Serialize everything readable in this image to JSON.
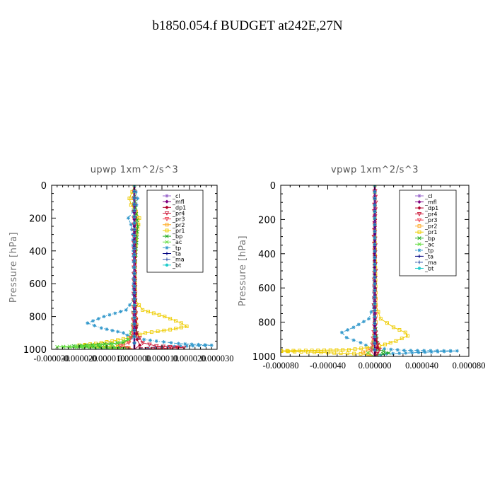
{
  "figure_title": "b1850.054.f  BUDGET at242E,27N",
  "legend_entries": [
    "_cl",
    "_mfl",
    "_dp1",
    "_pr4",
    "_pr3",
    "_pr2",
    "_pr1",
    "_bp",
    "_ac",
    "_tp",
    "_ta",
    "_ma",
    "_bt"
  ],
  "colors": {
    "_cl": "#9966cc",
    "_mfl": "#800080",
    "_dp1": "#b0002a",
    "_pr4": "#cc1a3a",
    "_pr3": "#ee4455",
    "_pr2": "#ffaa22",
    "_pr1": "#eecc00",
    "_bp": "#22aa22",
    "_ac": "#66dd44",
    "_tp": "#3399cc",
    "_ta": "#000080",
    "_ma": "#3355aa",
    "_bt": "#22cccc"
  },
  "chart_data": [
    {
      "type": "line",
      "title": "upwp   1xm^2/s^3",
      "ylabel": "Pressure  [hPa]",
      "xlabel": "",
      "ylim": [
        1000,
        0
      ],
      "xlim": [
        -3e-05,
        3e-05
      ],
      "yticks": [
        0,
        200,
        400,
        600,
        800,
        1000
      ],
      "xtick_labels": [
        "-0.000030",
        "-0.000020",
        "-0.000010",
        "0.000000",
        "0.000010",
        "0.000020",
        "0.000030"
      ],
      "xtick_values": [
        -3e-05,
        -2e-05,
        -1e-05,
        0,
        1e-05,
        2e-05,
        3e-05
      ],
      "grid": false,
      "legend_position": "top-right",
      "series": [
        {
          "name": "_tp",
          "points": [
            [
              2e-07,
              0
            ],
            [
              6e-07,
              40
            ],
            [
              1.2e-06,
              80
            ],
            [
              8e-07,
              120
            ],
            [
              -5e-07,
              160
            ],
            [
              -2.2e-06,
              200
            ],
            [
              -1.2e-06,
              240
            ],
            [
              -6e-07,
              300
            ],
            [
              -4e-07,
              400
            ],
            [
              -3e-07,
              500
            ],
            [
              -3e-07,
              600
            ],
            [
              -4e-07,
              700
            ],
            [
              -3e-06,
              760
            ],
            [
              -1.1e-05,
              800
            ],
            [
              -1.7e-05,
              840
            ],
            [
              -1.2e-05,
              870
            ],
            [
              -4e-06,
              900
            ],
            [
              -1e-06,
              930
            ],
            [
              8e-06,
              950
            ],
            [
              1.6e-05,
              965
            ],
            [
              2.8e-05,
              975
            ],
            [
              1e-05,
              985
            ],
            [
              0,
              1000
            ]
          ]
        },
        {
          "name": "_pr1",
          "points": [
            [
              0,
              0
            ],
            [
              -8e-07,
              40
            ],
            [
              -1.8e-06,
              80
            ],
            [
              -1.2e-06,
              120
            ],
            [
              6e-07,
              160
            ],
            [
              1.8e-06,
              200
            ],
            [
              1.5e-06,
              240
            ],
            [
              8e-07,
              300
            ],
            [
              4e-07,
              400
            ],
            [
              3e-07,
              500
            ],
            [
              3e-07,
              600
            ],
            [
              4e-07,
              700
            ],
            [
              3e-06,
              760
            ],
            [
              1.1e-05,
              800
            ],
            [
              1.7e-05,
              840
            ],
            [
              1.9e-05,
              860
            ],
            [
              1.3e-05,
              880
            ],
            [
              4e-06,
              900
            ],
            [
              -2e-06,
              930
            ],
            [
              -8e-06,
              950
            ],
            [
              -1.4e-05,
              965
            ],
            [
              -2e-05,
              975
            ],
            [
              -6e-06,
              985
            ],
            [
              0,
              1000
            ]
          ]
        },
        {
          "name": "_pr2",
          "points": [
            [
              0,
              0
            ],
            [
              -4e-07,
              80
            ],
            [
              5e-07,
              200
            ],
            [
              4e-07,
              300
            ],
            [
              2e-07,
              500
            ],
            [
              2e-07,
              700
            ],
            [
              8e-07,
              850
            ],
            [
              -2e-06,
              950
            ],
            [
              -6e-06,
              975
            ],
            [
              0,
              1000
            ]
          ]
        },
        {
          "name": "_bp",
          "points": [
            [
              0,
              0
            ],
            [
              2e-07,
              100
            ],
            [
              1.2e-06,
              250
            ],
            [
              8e-07,
              350
            ],
            [
              2e-07,
              500
            ],
            [
              3e-07,
              700
            ],
            [
              4e-07,
              820
            ],
            [
              1e-06,
              900
            ],
            [
              -4e-06,
              960
            ],
            [
              -2.2e-05,
              980
            ],
            [
              -3e-06,
              990
            ],
            [
              0,
              1000
            ]
          ]
        },
        {
          "name": "_ac",
          "points": [
            [
              0,
              0
            ],
            [
              -3e-07,
              150
            ],
            [
              6e-07,
              320
            ],
            [
              2e-07,
              500
            ],
            [
              -2e-07,
              700
            ],
            [
              -6e-07,
              850
            ],
            [
              -2e-06,
              940
            ],
            [
              -8e-06,
              970
            ],
            [
              -2.8e-05,
              985
            ],
            [
              0,
              1000
            ]
          ]
        },
        {
          "name": "_pr4",
          "points": [
            [
              0,
              0
            ],
            [
              2e-07,
              200
            ],
            [
              2e-07,
              500
            ],
            [
              3e-07,
              700
            ],
            [
              8e-07,
              900
            ],
            [
              3e-06,
              960
            ],
            [
              8e-06,
              980
            ],
            [
              1.8e-05,
              990
            ],
            [
              0,
              1000
            ]
          ]
        },
        {
          "name": "_pr3",
          "points": [
            [
              0,
              0
            ],
            [
              -2e-07,
              200
            ],
            [
              -2e-07,
              500
            ],
            [
              -3e-07,
              700
            ],
            [
              -6e-07,
              900
            ],
            [
              -2e-06,
              960
            ],
            [
              -5e-06,
              980
            ],
            [
              0,
              1000
            ]
          ]
        },
        {
          "name": "_dp1",
          "points": [
            [
              0,
              0
            ],
            [
              2e-07,
              400
            ],
            [
              3e-07,
              800
            ],
            [
              1e-06,
              940
            ],
            [
              2e-06,
              975
            ],
            [
              0,
              1000
            ]
          ]
        },
        {
          "name": "_mfl",
          "points": [
            [
              0,
              0
            ],
            [
              0,
              250
            ],
            [
              0,
              500
            ],
            [
              0,
              750
            ],
            [
              0,
              1000
            ]
          ]
        },
        {
          "name": "_cl",
          "points": [
            [
              0,
              0
            ],
            [
              1e-07,
              500
            ],
            [
              0,
              1000
            ]
          ]
        },
        {
          "name": "_bt",
          "points": [
            [
              0,
              0
            ],
            [
              0,
              500
            ],
            [
              0,
              1000
            ]
          ]
        },
        {
          "name": "_ta",
          "points": [
            [
              0,
              0
            ],
            [
              0,
              500
            ],
            [
              0,
              1000
            ]
          ]
        },
        {
          "name": "_ma",
          "points": [
            [
              0,
              0
            ],
            [
              0,
              500
            ],
            [
              0,
              1000
            ]
          ]
        }
      ]
    },
    {
      "type": "line",
      "title": "vpwp   1xm^2/s^3",
      "ylabel": "Pressure  [hPa]",
      "xlabel": "",
      "ylim": [
        1000,
        0
      ],
      "xlim": [
        -8e-05,
        8e-05
      ],
      "yticks": [
        0,
        200,
        400,
        600,
        800,
        1000
      ],
      "xtick_labels": [
        "-0.000080",
        "-0.000040",
        "0.000000",
        "0.000040",
        "0.000080"
      ],
      "xtick_values": [
        -8e-05,
        -4e-05,
        0,
        4e-05,
        8e-05
      ],
      "grid": false,
      "legend_position": "top-right",
      "series": [
        {
          "name": "_tp",
          "points": [
            [
              0,
              0
            ],
            [
              0,
              300
            ],
            [
              -1e-06,
              700
            ],
            [
              -5e-06,
              780
            ],
            [
              -1.8e-05,
              830
            ],
            [
              -2.8e-05,
              860
            ],
            [
              -2.4e-05,
              890
            ],
            [
              -1.2e-05,
              920
            ],
            [
              -3e-06,
              950
            ],
            [
              2.5e-05,
              965
            ],
            [
              7e-05,
              968
            ],
            [
              1e-05,
              985
            ],
            [
              0,
              1000
            ]
          ]
        },
        {
          "name": "_pr1",
          "points": [
            [
              0,
              0
            ],
            [
              0,
              300
            ],
            [
              1e-06,
              700
            ],
            [
              5e-06,
              780
            ],
            [
              1.6e-05,
              830
            ],
            [
              2.6e-05,
              860
            ],
            [
              2.8e-05,
              880
            ],
            [
              1.8e-05,
              910
            ],
            [
              4e-06,
              940
            ],
            [
              -2.2e-05,
              962
            ],
            [
              -8.5e-05,
              968
            ],
            [
              -1.2e-05,
              985
            ],
            [
              0,
              1000
            ]
          ]
        },
        {
          "name": "_pr2",
          "points": [
            [
              0,
              0
            ],
            [
              0,
              500
            ],
            [
              1e-06,
              800
            ],
            [
              -2e-06,
              950
            ],
            [
              -1e-05,
              975
            ],
            [
              0,
              1000
            ]
          ]
        },
        {
          "name": "_bp",
          "points": [
            [
              0,
              0
            ],
            [
              0,
              500
            ],
            [
              0,
              800
            ],
            [
              3e-06,
              960
            ],
            [
              1.2e-05,
              980
            ],
            [
              2e-06,
              990
            ],
            [
              0,
              1000
            ]
          ]
        },
        {
          "name": "_ac",
          "points": [
            [
              0,
              0
            ],
            [
              0,
              500
            ],
            [
              0,
              800
            ],
            [
              -2e-06,
              960
            ],
            [
              -6e-06,
              980
            ],
            [
              0,
              1000
            ]
          ]
        },
        {
          "name": "_pr4",
          "points": [
            [
              0,
              0
            ],
            [
              8e-07,
              100
            ],
            [
              -8e-07,
              300
            ],
            [
              8e-07,
              500
            ],
            [
              -8e-07,
              700
            ],
            [
              1.2e-06,
              900
            ],
            [
              4e-06,
              960
            ],
            [
              2e-06,
              985
            ],
            [
              0,
              1000
            ]
          ]
        },
        {
          "name": "_pr3",
          "points": [
            [
              0,
              0
            ],
            [
              -6e-07,
              150
            ],
            [
              6e-07,
              350
            ],
            [
              -6e-07,
              550
            ],
            [
              6e-07,
              750
            ],
            [
              -2e-06,
              930
            ],
            [
              -3e-06,
              965
            ],
            [
              0,
              1000
            ]
          ]
        },
        {
          "name": "_dp1",
          "points": [
            [
              0,
              0
            ],
            [
              4e-07,
              200
            ],
            [
              -4e-07,
              400
            ],
            [
              4e-07,
              600
            ],
            [
              -4e-07,
              800
            ],
            [
              2e-06,
              950
            ],
            [
              0,
              1000
            ]
          ]
        },
        {
          "name": "_mfl",
          "points": [
            [
              0,
              0
            ],
            [
              0,
              250
            ],
            [
              0,
              500
            ],
            [
              0,
              750
            ],
            [
              0,
              1000
            ]
          ]
        },
        {
          "name": "_cl",
          "points": [
            [
              0,
              0
            ],
            [
              0,
              500
            ],
            [
              0,
              1000
            ]
          ]
        },
        {
          "name": "_bt",
          "points": [
            [
              0,
              0
            ],
            [
              0,
              500
            ],
            [
              0,
              1000
            ]
          ]
        },
        {
          "name": "_ta",
          "points": [
            [
              0,
              0
            ],
            [
              0,
              500
            ],
            [
              0,
              1000
            ]
          ]
        },
        {
          "name": "_ma",
          "points": [
            [
              0,
              0
            ],
            [
              0,
              500
            ],
            [
              0,
              1000
            ]
          ]
        }
      ]
    }
  ]
}
